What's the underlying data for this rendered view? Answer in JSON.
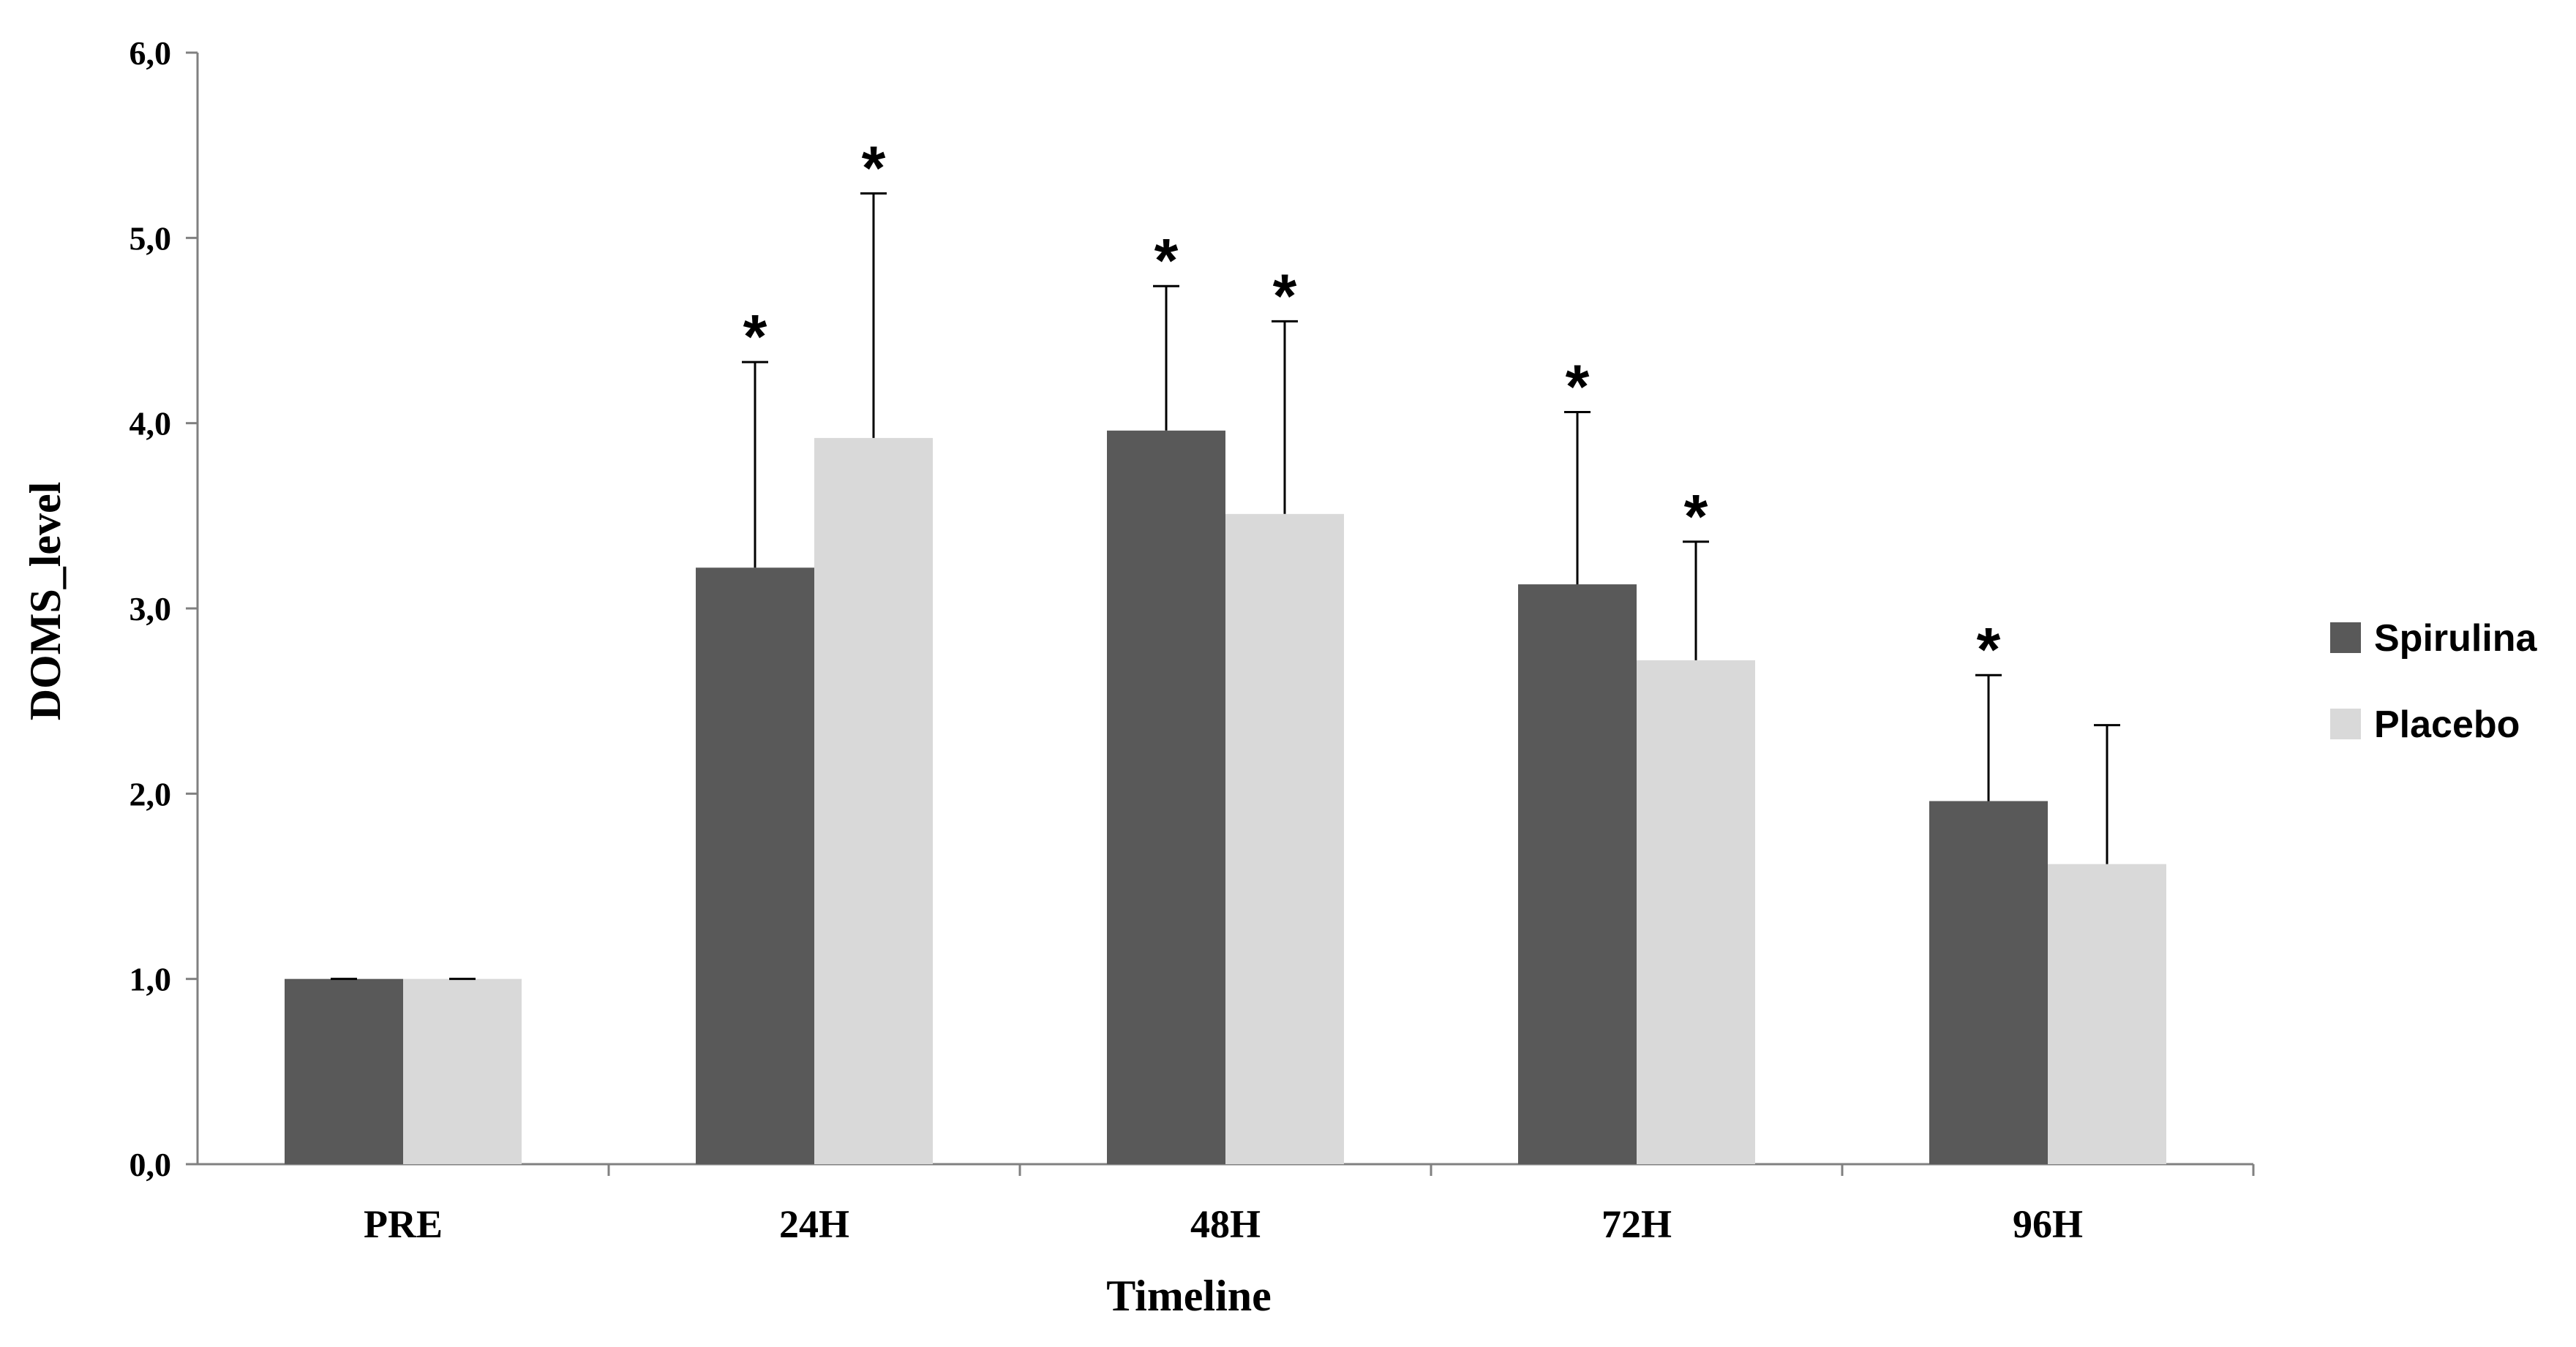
{
  "chart_data": {
    "type": "bar",
    "categories": [
      "PRE",
      "24H",
      "48H",
      "72H",
      "96H"
    ],
    "series": [
      {
        "name": "Spirulina",
        "color": "#595959",
        "values": [
          1.0,
          3.22,
          3.96,
          3.13,
          1.96
        ],
        "error_plus": [
          0.0,
          1.11,
          0.78,
          0.93,
          0.68
        ],
        "significance": [
          "",
          "*",
          "*",
          "*",
          "*"
        ]
      },
      {
        "name": "Placebo",
        "color": "#d9d9d9",
        "values": [
          1.0,
          3.92,
          3.51,
          2.72,
          1.62
        ],
        "error_plus": [
          0.0,
          1.32,
          1.04,
          0.64,
          0.75
        ],
        "significance": [
          "",
          "*",
          "*",
          "*",
          ""
        ]
      }
    ],
    "xlabel": "Timeline",
    "ylabel": "DOMS_level",
    "ylim": [
      0,
      6
    ],
    "yticks": [
      "0,0",
      "1,0",
      "2,0",
      "3,0",
      "4,0",
      "5,0",
      "6,0"
    ],
    "grid": false,
    "legend_position": "right"
  }
}
